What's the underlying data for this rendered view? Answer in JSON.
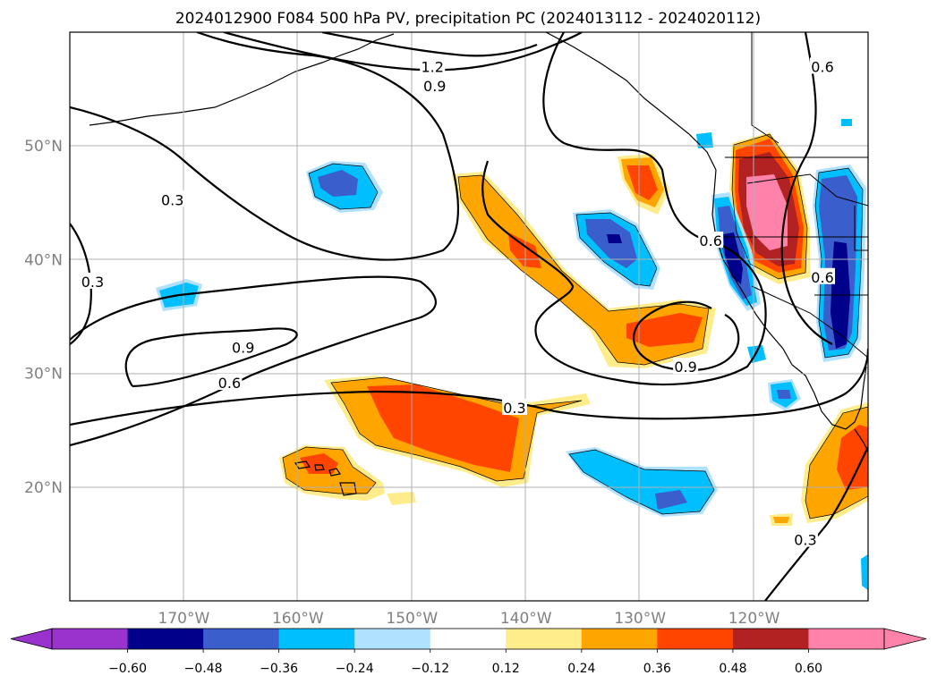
{
  "chart_data": {
    "type": "map_contour",
    "title": "2024012900 F084 500 hPa PV, precipitation PC (2024013112 - 2024020112)",
    "x_axis": {
      "range_deg_lon": [
        -180,
        -110
      ],
      "ticks": [
        {
          "value": -170,
          "label": "170°W"
        },
        {
          "value": -160,
          "label": "160°W"
        },
        {
          "value": -150,
          "label": "150°W"
        },
        {
          "value": -140,
          "label": "140°W"
        },
        {
          "value": -130,
          "label": "130°W"
        },
        {
          "value": -120,
          "label": "120°W"
        }
      ]
    },
    "y_axis": {
      "range_deg_lat": [
        10,
        60
      ],
      "ticks": [
        {
          "value": 20,
          "label": "20°N"
        },
        {
          "value": 30,
          "label": "30°N"
        },
        {
          "value": 40,
          "label": "40°N"
        },
        {
          "value": 50,
          "label": "50°N"
        }
      ]
    },
    "grid": true,
    "colorbar": {
      "orientation": "horizontal",
      "extend": "both",
      "levels": [
        -0.72,
        -0.6,
        -0.48,
        -0.36,
        -0.24,
        -0.12,
        0.12,
        0.24,
        0.36,
        0.48,
        0.6,
        0.72
      ],
      "colors": [
        "#9a32cd",
        "#00008b",
        "#3a5fcd",
        "#00bfff",
        "#b0e2ff",
        "#ffffff",
        "#ffec8b",
        "#ffa500",
        "#ff4500",
        "#b22222",
        "#ff82ab"
      ],
      "under_color": "#9a32cd",
      "over_color": "#ff82ab",
      "tick_labels": [
        "−0.60",
        "−0.48",
        "−0.36",
        "−0.24",
        "−0.12",
        "0.12",
        "0.24",
        "0.36",
        "0.48",
        "0.60"
      ]
    },
    "pv_contour_labels": [
      {
        "text": "1.2",
        "lon": -148.2,
        "lat": 56.9
      },
      {
        "text": "0.9",
        "lon": -148.0,
        "lat": 55.2
      },
      {
        "text": "0.3",
        "lon": -171.0,
        "lat": 45.2
      },
      {
        "text": "0.3",
        "lon": -178.0,
        "lat": 38.0
      },
      {
        "text": "0.9",
        "lon": -164.8,
        "lat": 32.2
      },
      {
        "text": "0.6",
        "lon": -166.0,
        "lat": 29.1
      },
      {
        "text": "0.3",
        "lon": -141.0,
        "lat": 26.9
      },
      {
        "text": "0.9",
        "lon": -126.0,
        "lat": 30.5
      },
      {
        "text": "0.6",
        "lon": -123.8,
        "lat": 41.6
      },
      {
        "text": "0.6",
        "lon": -114.0,
        "lat": 56.9
      },
      {
        "text": "0.6",
        "lon": -114.0,
        "lat": 38.4
      },
      {
        "text": "0.3",
        "lon": -115.5,
        "lat": 15.3
      }
    ]
  }
}
